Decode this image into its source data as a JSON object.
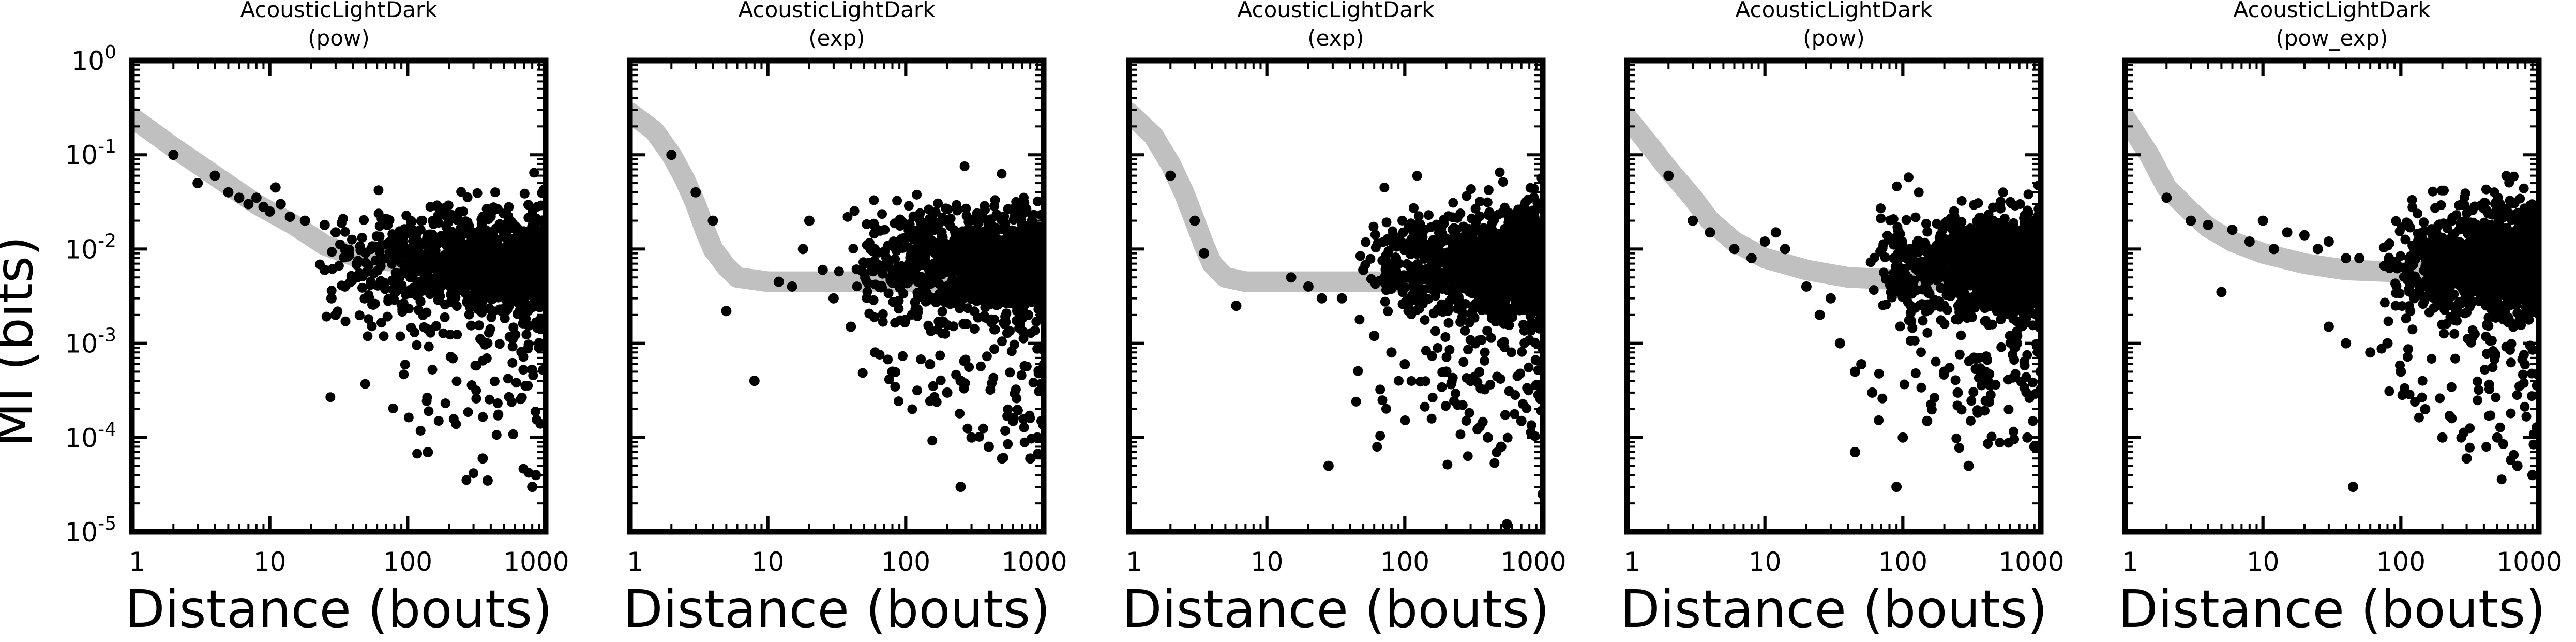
{
  "figure": {
    "ylabel": "MI (bits)",
    "xlabel": "Distance (bouts)"
  },
  "chart_data": [
    {
      "type": "scatter",
      "title": "AcousticLightDark",
      "subtitle": "(pow)",
      "xlabel": "Distance (bouts)",
      "ylabel": "MI (bits)",
      "xscale": "log",
      "yscale": "log",
      "xlim": [
        1,
        1000
      ],
      "ylim": [
        1e-05,
        1
      ],
      "x_ticks": [
        "1",
        "10",
        "100",
        "1000"
      ],
      "y_ticks": [
        "10^0",
        "10^-1",
        "10^-2",
        "10^-3",
        "10^-4",
        "10^-5"
      ],
      "fit_model": "pow",
      "fit_line": {
        "color": "#c0c0c0",
        "points": [
          [
            1,
            0.25
          ],
          [
            2,
            0.12
          ],
          [
            4,
            0.06
          ],
          [
            8,
            0.03
          ],
          [
            15,
            0.018
          ],
          [
            25,
            0.011
          ],
          [
            40,
            0.0085
          ],
          [
            70,
            0.0075
          ],
          [
            150,
            0.007
          ],
          [
            400,
            0.0068
          ],
          [
            1000,
            0.0068
          ]
        ]
      },
      "highlight_points": [
        [
          2,
          0.1
        ],
        [
          3,
          0.05
        ],
        [
          4,
          0.06
        ],
        [
          5,
          0.04
        ],
        [
          6,
          0.035
        ],
        [
          7,
          0.03
        ],
        [
          8,
          0.035
        ],
        [
          9,
          0.028
        ],
        [
          10,
          0.025
        ],
        [
          11,
          0.045
        ],
        [
          12,
          0.03
        ],
        [
          14,
          0.022
        ],
        [
          18,
          0.02
        ],
        [
          25,
          0.018
        ],
        [
          30,
          0.015
        ],
        [
          35,
          0.01
        ],
        [
          25,
          0.006
        ],
        [
          35,
          0.004
        ],
        [
          28,
          0.003
        ],
        [
          30,
          0.002
        ],
        [
          140,
          7e-05
        ],
        [
          350,
          6e-05
        ],
        [
          380,
          3.5e-05
        ],
        [
          800,
          3e-05
        ],
        [
          850,
          4e-05
        ]
      ],
      "cloud": {
        "color": "#000000",
        "x_range": [
          20,
          1000
        ],
        "y_median": 0.007,
        "density": "high"
      }
    },
    {
      "type": "scatter",
      "title": "AcousticLightDark",
      "subtitle": "(exp)",
      "xlabel": "Distance (bouts)",
      "ylabel": "MI (bits)",
      "xscale": "log",
      "yscale": "log",
      "xlim": [
        1,
        1000
      ],
      "ylim": [
        1e-05,
        1
      ],
      "x_ticks": [
        "1",
        "10",
        "100",
        "1000"
      ],
      "fit_model": "exp",
      "fit_line": {
        "color": "#c0c0c0",
        "points": [
          [
            1,
            0.28
          ],
          [
            1.5,
            0.18
          ],
          [
            2,
            0.1
          ],
          [
            2.5,
            0.055
          ],
          [
            3,
            0.03
          ],
          [
            3.5,
            0.016
          ],
          [
            4,
            0.01
          ],
          [
            5,
            0.0065
          ],
          [
            6,
            0.005
          ],
          [
            10,
            0.0045
          ],
          [
            100,
            0.0045
          ],
          [
            1000,
            0.0045
          ]
        ]
      },
      "highlight_points": [
        [
          2,
          0.1
        ],
        [
          3,
          0.04
        ],
        [
          4,
          0.02
        ],
        [
          5,
          0.0022
        ],
        [
          8,
          0.0004
        ],
        [
          12,
          0.0045
        ],
        [
          15,
          0.004
        ],
        [
          18,
          0.01
        ],
        [
          20,
          0.02
        ],
        [
          25,
          0.006
        ],
        [
          30,
          0.003
        ],
        [
          40,
          0.0015
        ],
        [
          60,
          0.0008
        ],
        [
          80,
          0.0005
        ],
        [
          150,
          0.0006
        ],
        [
          200,
          0.0003
        ],
        [
          250,
          0.0004
        ],
        [
          300,
          0.0001
        ],
        [
          400,
          8e-05
        ],
        [
          500,
          6e-05
        ],
        [
          600,
          0.00015
        ],
        [
          800,
          6e-05
        ],
        [
          900,
          0.0001
        ],
        [
          250,
          3e-05
        ]
      ],
      "cloud": {
        "color": "#000000",
        "x_range": [
          30,
          1000
        ],
        "y_median": 0.007,
        "density": "high"
      }
    },
    {
      "type": "scatter",
      "title": "AcousticLightDark",
      "subtitle": "(exp)",
      "xlabel": "Distance (bouts)",
      "ylabel": "MI (bits)",
      "xscale": "log",
      "yscale": "log",
      "xlim": [
        1,
        1000
      ],
      "ylim": [
        1e-05,
        1
      ],
      "x_ticks": [
        "1",
        "10",
        "100",
        "1000"
      ],
      "fit_model": "exp",
      "fit_line": {
        "color": "#c0c0c0",
        "points": [
          [
            1,
            0.28
          ],
          [
            1.5,
            0.16
          ],
          [
            2,
            0.08
          ],
          [
            2.5,
            0.04
          ],
          [
            3,
            0.02
          ],
          [
            3.5,
            0.011
          ],
          [
            4,
            0.007
          ],
          [
            5,
            0.005
          ],
          [
            7,
            0.0045
          ],
          [
            20,
            0.0045
          ],
          [
            1000,
            0.0045
          ]
        ]
      },
      "highlight_points": [
        [
          2,
          0.06
        ],
        [
          3,
          0.02
        ],
        [
          3.5,
          0.009
        ],
        [
          6,
          0.0025
        ],
        [
          15,
          0.005
        ],
        [
          20,
          0.004
        ],
        [
          25,
          0.003
        ],
        [
          28,
          5e-05
        ],
        [
          35,
          0.003
        ],
        [
          50,
          0.006
        ],
        [
          60,
          0.0012
        ],
        [
          80,
          0.0008
        ],
        [
          100,
          0.0006
        ],
        [
          200,
          0.0005
        ],
        [
          300,
          0.0004
        ],
        [
          400,
          0.0001
        ],
        [
          500,
          8e-05
        ],
        [
          550,
          1.2e-05
        ],
        [
          700,
          0.00015
        ],
        [
          1000,
          2.5e-05
        ]
      ],
      "cloud": {
        "color": "#000000",
        "x_range": [
          40,
          1000
        ],
        "y_median": 0.007,
        "density": "high"
      }
    },
    {
      "type": "scatter",
      "title": "AcousticLightDark",
      "subtitle": "(pow)",
      "xlabel": "Distance (bouts)",
      "ylabel": "MI (bits)",
      "xscale": "log",
      "yscale": "log",
      "xlim": [
        1,
        1000
      ],
      "ylim": [
        1e-05,
        1
      ],
      "x_ticks": [
        "1",
        "10",
        "100",
        "1000"
      ],
      "fit_model": "pow",
      "fit_line": {
        "color": "#c0c0c0",
        "points": [
          [
            1,
            0.25
          ],
          [
            1.5,
            0.12
          ],
          [
            2,
            0.07
          ],
          [
            3,
            0.035
          ],
          [
            4,
            0.02
          ],
          [
            6,
            0.012
          ],
          [
            10,
            0.008
          ],
          [
            20,
            0.006
          ],
          [
            40,
            0.005
          ],
          [
            100,
            0.0047
          ],
          [
            1000,
            0.0046
          ]
        ]
      },
      "highlight_points": [
        [
          2,
          0.06
        ],
        [
          3,
          0.02
        ],
        [
          4,
          0.015
        ],
        [
          6,
          0.01
        ],
        [
          8,
          0.008
        ],
        [
          10,
          0.012
        ],
        [
          12,
          0.015
        ],
        [
          14,
          0.01
        ],
        [
          20,
          0.004
        ],
        [
          25,
          0.002
        ],
        [
          30,
          0.003
        ],
        [
          35,
          0.001
        ],
        [
          45,
          0.0005
        ],
        [
          50,
          0.0006
        ],
        [
          45,
          7e-05
        ],
        [
          60,
          0.0003
        ],
        [
          90,
          3e-05
        ],
        [
          100,
          0.0001
        ],
        [
          150,
          0.00015
        ],
        [
          200,
          0.0005
        ],
        [
          250,
          0.0003
        ],
        [
          300,
          5e-05
        ],
        [
          800,
          0.0001
        ],
        [
          900,
          8e-05
        ]
      ],
      "cloud": {
        "color": "#000000",
        "x_range": [
          50,
          1000
        ],
        "y_median": 0.007,
        "density": "high"
      }
    },
    {
      "type": "scatter",
      "title": "AcousticLightDark",
      "subtitle": "(pow_exp)",
      "xlabel": "Distance (bouts)",
      "ylabel": "MI (bits)",
      "xscale": "log",
      "yscale": "log",
      "xlim": [
        1,
        1000
      ],
      "ylim": [
        1e-05,
        1
      ],
      "x_ticks": [
        "1",
        "10",
        "100",
        "1000"
      ],
      "fit_model": "pow_exp",
      "fit_line": {
        "color": "#c0c0c0",
        "points": [
          [
            1,
            0.25
          ],
          [
            1.5,
            0.1
          ],
          [
            2,
            0.045
          ],
          [
            3,
            0.025
          ],
          [
            4,
            0.017
          ],
          [
            6,
            0.012
          ],
          [
            10,
            0.009
          ],
          [
            20,
            0.007
          ],
          [
            40,
            0.006
          ],
          [
            100,
            0.0057
          ],
          [
            300,
            0.0063
          ],
          [
            1000,
            0.0068
          ]
        ]
      },
      "highlight_points": [
        [
          2,
          0.035
        ],
        [
          3,
          0.02
        ],
        [
          4,
          0.018
        ],
        [
          5,
          0.0035
        ],
        [
          6,
          0.016
        ],
        [
          8,
          0.012
        ],
        [
          10,
          0.02
        ],
        [
          12,
          0.01
        ],
        [
          15,
          0.015
        ],
        [
          20,
          0.014
        ],
        [
          25,
          0.01
        ],
        [
          30,
          0.012
        ],
        [
          40,
          0.008
        ],
        [
          50,
          0.008
        ],
        [
          30,
          0.0015
        ],
        [
          40,
          0.001
        ],
        [
          45,
          3e-05
        ],
        [
          60,
          0.0008
        ],
        [
          80,
          0.001
        ],
        [
          100,
          0.0005
        ],
        [
          150,
          0.0002
        ],
        [
          200,
          0.0001
        ],
        [
          300,
          6e-05
        ],
        [
          500,
          0.0001
        ],
        [
          700,
          5e-05
        ],
        [
          900,
          4e-05
        ]
      ],
      "cloud": {
        "color": "#000000",
        "x_range": [
          60,
          1000
        ],
        "y_median": 0.008,
        "density": "high"
      }
    }
  ]
}
